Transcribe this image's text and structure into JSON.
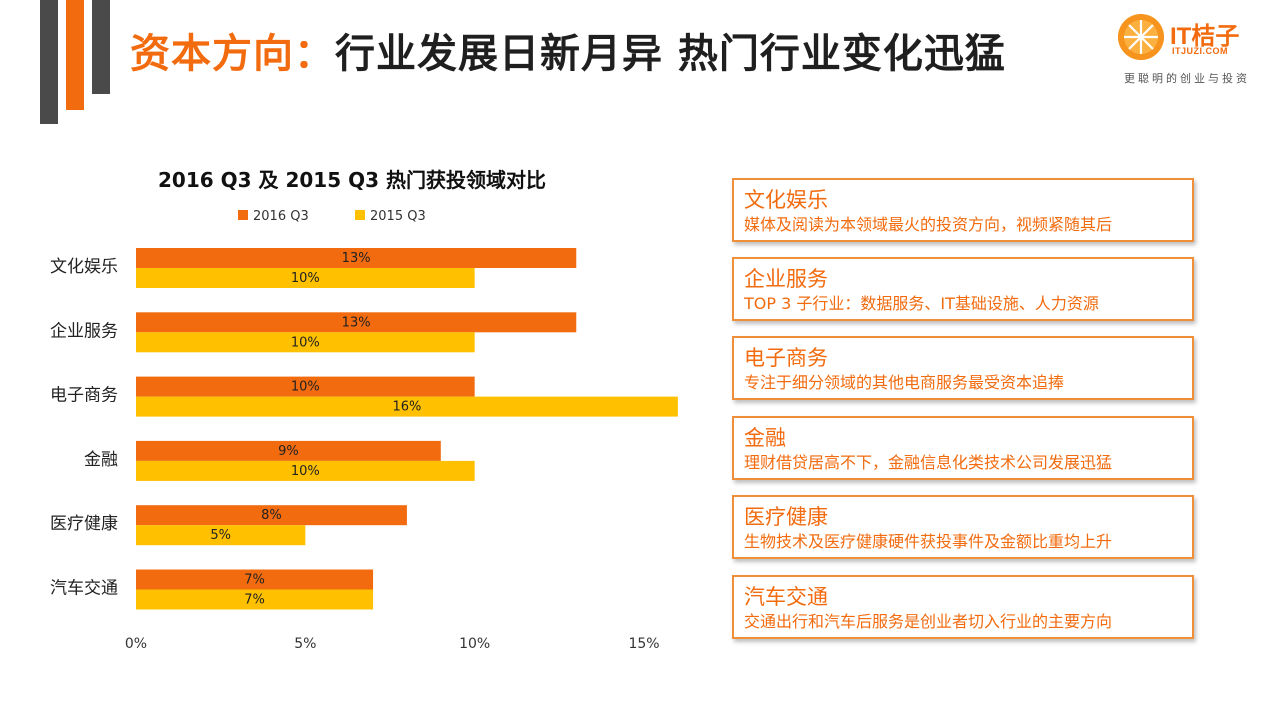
{
  "header": {
    "title_accent": "资本方向：",
    "title_rest": "行业发展日新月异 热门行业变化迅猛"
  },
  "logo": {
    "name": "IT桔子",
    "domain": "ITJUZI.COM",
    "slogan": "更聪明的创业与投资"
  },
  "colors": {
    "accent": "#f26b0f",
    "series_2016": "#f26b0f",
    "series_2015": "#ffc000",
    "card_border": "#f08f3a"
  },
  "chart_data": {
    "type": "bar",
    "orientation": "horizontal",
    "title": "2016 Q3 及 2015 Q3 热门获投领域对比",
    "categories": [
      "文化娱乐",
      "企业服务",
      "电子商务",
      "金融",
      "医疗健康",
      "汽车交通"
    ],
    "series": [
      {
        "name": "2016 Q3",
        "color": "#f26b0f",
        "values": [
          13,
          13,
          10,
          9,
          8,
          7
        ],
        "labels": [
          "13%",
          "13%",
          "10%",
          "9%",
          "8%",
          "7%"
        ]
      },
      {
        "name": "2015 Q3",
        "color": "#ffc000",
        "values": [
          10,
          10,
          16,
          10,
          5,
          7
        ],
        "labels": [
          "10%",
          "10%",
          "16%",
          "10%",
          "5%",
          "7%"
        ]
      }
    ],
    "xlim": [
      0,
      15
    ],
    "x_ticks": [
      0,
      5,
      10,
      15
    ],
    "x_tick_labels": [
      "0%",
      "5%",
      "10%",
      "15%"
    ],
    "legend_position": "top",
    "grid": false
  },
  "cards": [
    {
      "title": "文化娱乐",
      "desc": "媒体及阅读为本领域最火的投资方向，视频紧随其后"
    },
    {
      "title": "企业服务",
      "desc": "TOP 3 子行业：数据服务、IT基础设施、人力资源"
    },
    {
      "title": "电子商务",
      "desc": "专注于细分领域的其他电商服务最受资本追捧"
    },
    {
      "title": "金融",
      "desc": "理财借贷居高不下，金融信息化类技术公司发展迅猛"
    },
    {
      "title": "医疗健康",
      "desc": "生物技术及医疗健康硬件获投事件及金额比重均上升"
    },
    {
      "title": "汽车交通",
      "desc": "交通出行和汽车后服务是创业者切入行业的主要方向"
    }
  ]
}
